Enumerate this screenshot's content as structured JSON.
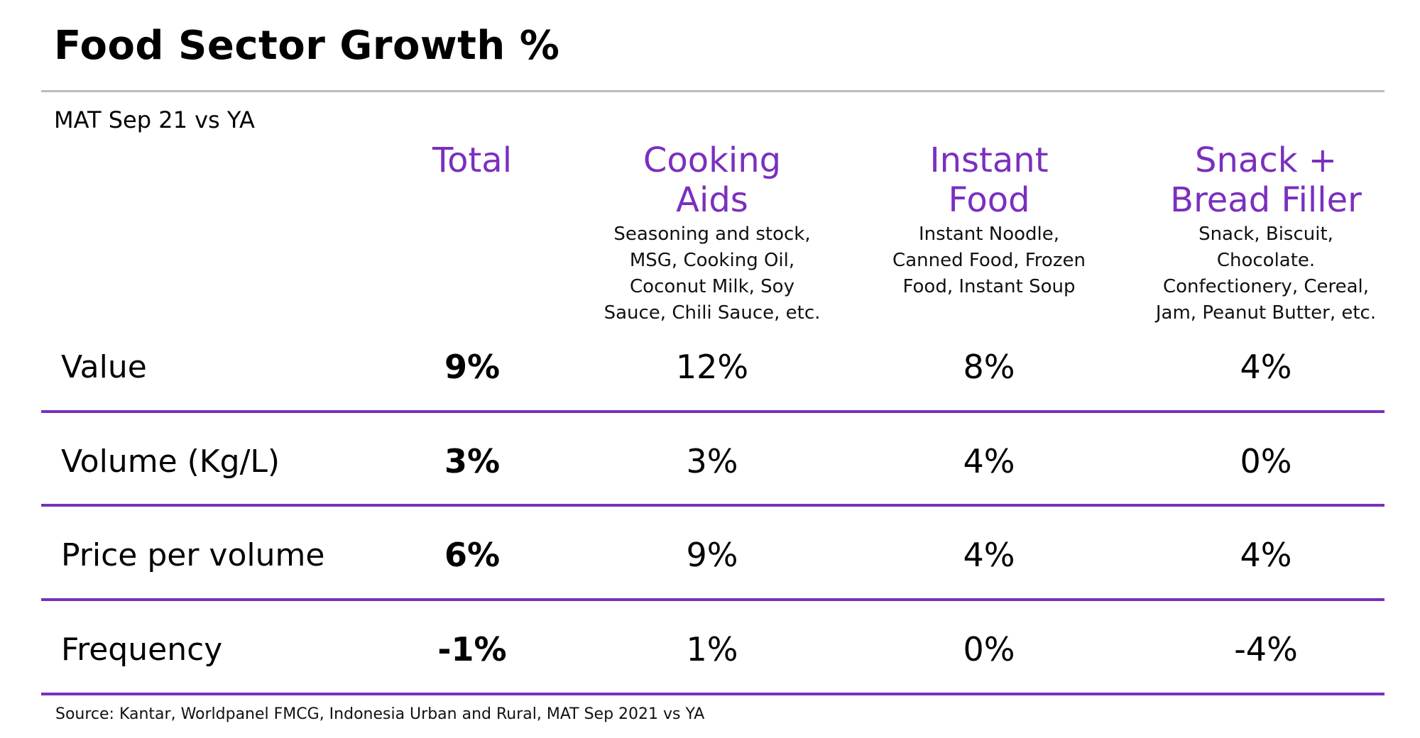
{
  "title": "Food Sector Growth %",
  "subtitle": "MAT Sep 21 vs YA",
  "source": "Source: Kantar, Worldpanel FMCG, Indonesia Urban and Rural, MAT Sep 2021 vs YA",
  "colors": {
    "accent": "#7b2fbe",
    "rule_gray": "#bdbdbd",
    "text": "#000000"
  },
  "chart_data": {
    "type": "table",
    "title": "Food Sector Growth %",
    "subtitle": "MAT Sep 21 vs YA",
    "columns": [
      {
        "title_lines": [
          "Total"
        ],
        "subtitle_lines": []
      },
      {
        "title_lines": [
          "Cooking",
          "Aids"
        ],
        "subtitle_lines": [
          "Seasoning and stock,",
          "MSG, Cooking Oil,",
          "Coconut Milk, Soy",
          "Sauce, Chili Sauce, etc."
        ]
      },
      {
        "title_lines": [
          "Instant",
          "Food"
        ],
        "subtitle_lines": [
          "Instant Noodle,",
          "Canned Food, Frozen",
          "Food, Instant Soup"
        ]
      },
      {
        "title_lines": [
          "Snack +",
          "Bread Filler"
        ],
        "subtitle_lines": [
          "Snack, Biscuit,",
          "Chocolate.",
          "Confectionery, Cereal,",
          "Jam, Peanut Butter, etc."
        ]
      }
    ],
    "rows": [
      {
        "label": "Value",
        "values": [
          "9%",
          "12%",
          "8%",
          "4%"
        ]
      },
      {
        "label": "Volume (Kg/L)",
        "values": [
          "3%",
          "3%",
          "4%",
          "0%"
        ]
      },
      {
        "label": "Price per volume",
        "values": [
          "6%",
          "9%",
          "4%",
          "4%"
        ]
      },
      {
        "label": "Frequency",
        "values": [
          "-1%",
          "1%",
          "0%",
          "-4%"
        ]
      }
    ]
  }
}
